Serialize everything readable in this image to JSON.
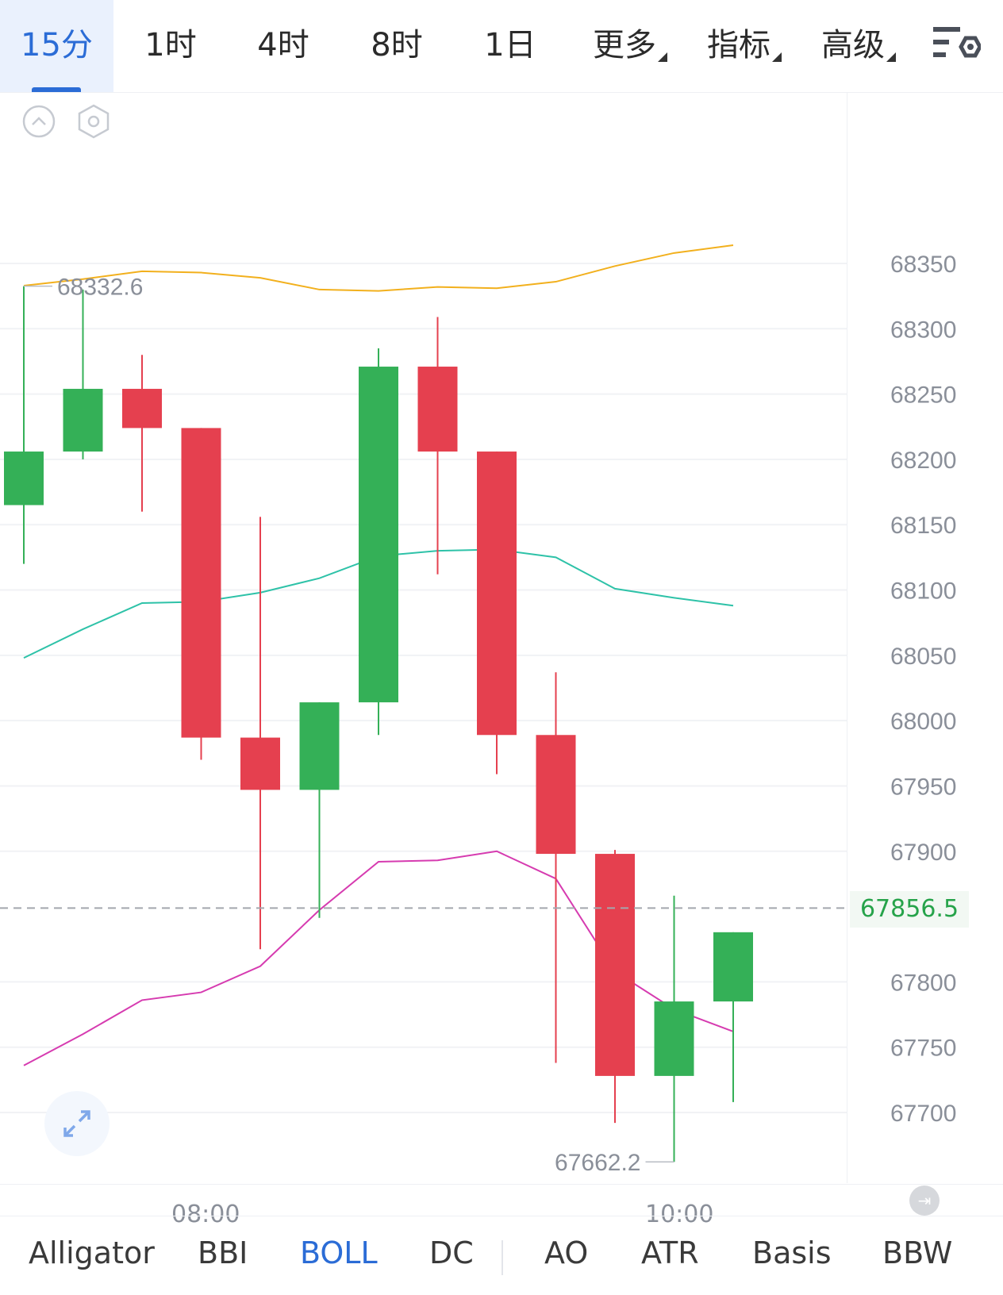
{
  "toolbar": {
    "timeframes": [
      "15分",
      "1时",
      "4时",
      "8时",
      "1日"
    ],
    "active_timeframe": "15分",
    "dropdowns": [
      "更多",
      "指标",
      "高级"
    ]
  },
  "colors": {
    "up": "#34b057",
    "down": "#e5404f",
    "boll_upper": "#f2b01d",
    "boll_mid": "#2ec2a8",
    "boll_lower": "#d63bb0",
    "accent": "#2b6cd6",
    "current_price": "#26a34a"
  },
  "chart_data": {
    "type": "candlestick",
    "indicator": "BOLL",
    "candles": [
      {
        "open": 68165,
        "close": 68206,
        "high": 68332.6,
        "low": 68120
      },
      {
        "open": 68206,
        "close": 68254,
        "high": 68330,
        "low": 68200
      },
      {
        "open": 68254,
        "close": 68224,
        "high": 68280,
        "low": 68160
      },
      {
        "open": 68224,
        "close": 67987,
        "high": 68224,
        "low": 67970
      },
      {
        "open": 67987,
        "close": 67947,
        "high": 68156,
        "low": 67825
      },
      {
        "open": 67947,
        "close": 68014,
        "high": 68014,
        "low": 67849
      },
      {
        "open": 68014,
        "close": 68271,
        "high": 68285,
        "low": 67989
      },
      {
        "open": 68271,
        "close": 68206,
        "high": 68309,
        "low": 68112
      },
      {
        "open": 68206,
        "close": 67989,
        "high": 68206,
        "low": 67959
      },
      {
        "open": 67989,
        "close": 67898,
        "high": 68037,
        "low": 67738
      },
      {
        "open": 67898,
        "close": 67728,
        "high": 67901,
        "low": 67692
      },
      {
        "open": 67728,
        "close": 67785,
        "high": 67866,
        "low": 67662.2
      },
      {
        "open": 67785,
        "close": 67838,
        "high": 67838,
        "low": 67708
      }
    ],
    "boll_upper": [
      68333,
      68338,
      68344,
      68343,
      68339,
      68330,
      68329,
      68332,
      68331,
      68336,
      68348,
      68358,
      68364
    ],
    "boll_mid": [
      68048,
      68070,
      68090,
      68091,
      68098,
      68109,
      68126,
      68130,
      68131,
      68125,
      68101,
      68094,
      68088
    ],
    "boll_lower": [
      67736,
      67760,
      67786,
      67792,
      67812,
      67855,
      67892,
      67893,
      67900,
      67879,
      67808,
      67779,
      67762
    ],
    "y_ticks": [
      68350,
      68300,
      68250,
      68200,
      68150,
      68100,
      68050,
      68000,
      67950,
      67900,
      67800,
      67750,
      67700
    ],
    "y_range": [
      67640,
      68430
    ],
    "max_label": "68332.6",
    "min_label": "67662.2",
    "current_price": "67856.5",
    "time_labels": [
      "08:00",
      "10:00"
    ]
  },
  "indicators": {
    "main": [
      "Alligator",
      "BBI",
      "BOLL",
      "DC"
    ],
    "sub": [
      "AO",
      "ATR",
      "Basis",
      "BBW"
    ],
    "active": "BOLL"
  }
}
